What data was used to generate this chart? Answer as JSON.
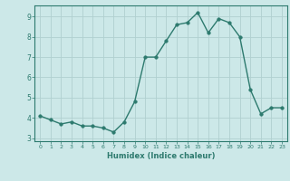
{
  "x": [
    0,
    1,
    2,
    3,
    4,
    5,
    6,
    7,
    8,
    9,
    10,
    11,
    12,
    13,
    14,
    15,
    16,
    17,
    18,
    19,
    20,
    21,
    22,
    23
  ],
  "y": [
    4.1,
    3.9,
    3.7,
    3.8,
    3.6,
    3.6,
    3.5,
    3.3,
    3.8,
    4.8,
    7.0,
    7.0,
    7.8,
    8.6,
    8.7,
    9.2,
    8.2,
    8.9,
    8.7,
    8.0,
    5.4,
    4.2,
    4.5,
    4.5
  ],
  "line_color": "#2d7a6e",
  "marker_color": "#2d7a6e",
  "bg_color": "#cce8e8",
  "grid_color": "#b0d0d0",
  "axis_color": "#2d7a6e",
  "tick_color": "#2d7a6e",
  "xlabel": "Humidex (Indice chaleur)",
  "ylim": [
    2.85,
    9.55
  ],
  "xlim": [
    -0.5,
    23.5
  ],
  "yticks": [
    3,
    4,
    5,
    6,
    7,
    8,
    9
  ],
  "xticks": [
    0,
    1,
    2,
    3,
    4,
    5,
    6,
    7,
    8,
    9,
    10,
    11,
    12,
    13,
    14,
    15,
    16,
    17,
    18,
    19,
    20,
    21,
    22,
    23
  ],
  "marker_size": 2.5,
  "line_width": 1.0
}
